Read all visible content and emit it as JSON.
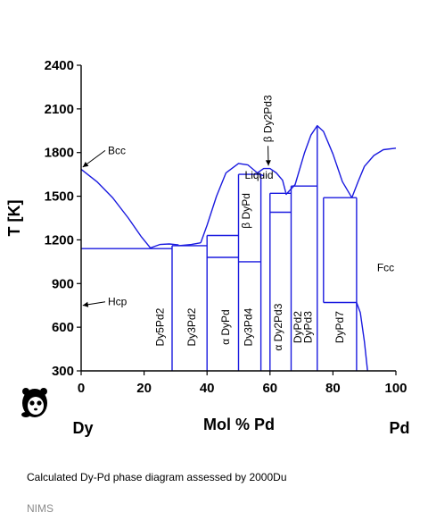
{
  "chart_data": {
    "type": "line",
    "title": "",
    "xlabel": "Mol % Pd",
    "ylabel": "T [K]",
    "xlim": [
      0,
      100
    ],
    "ylim": [
      300,
      2400
    ],
    "x_ticks": [
      "0",
      "20",
      "40",
      "60",
      "80",
      "100"
    ],
    "y_ticks": [
      "300",
      "600",
      "900",
      "1200",
      "1500",
      "1800",
      "2100",
      "2400"
    ],
    "left_element": "Dy",
    "right_element": "Pd",
    "line_color": "#1a1adf",
    "series": [
      {
        "values": [
          [
            0,
            1685
          ],
          [
            5,
            1600
          ],
          [
            10,
            1490
          ],
          [
            15,
            1350
          ],
          [
            19,
            1225
          ],
          [
            22,
            1145
          ]
        ]
      },
      {
        "values": [
          [
            22,
            1145
          ],
          [
            25,
            1168
          ],
          [
            28,
            1172
          ],
          [
            31,
            1165
          ]
        ]
      },
      {
        "values": [
          [
            31,
            1160
          ],
          [
            35,
            1168
          ],
          [
            38,
            1180
          ]
        ]
      },
      {
        "values": [
          [
            38,
            1180
          ],
          [
            40,
            1300
          ],
          [
            43,
            1500
          ],
          [
            46,
            1660
          ],
          [
            50,
            1725
          ],
          [
            53,
            1715
          ],
          [
            56,
            1660
          ],
          [
            58,
            1640
          ]
        ]
      },
      {
        "values": [
          [
            56,
            1660
          ],
          [
            58,
            1690
          ],
          [
            60,
            1690
          ],
          [
            62,
            1660
          ],
          [
            64,
            1610
          ],
          [
            65,
            1525
          ]
        ]
      },
      {
        "values": [
          [
            65,
            1510
          ],
          [
            68,
            1580
          ],
          [
            71,
            1800
          ],
          [
            73,
            1920
          ],
          [
            75,
            1985
          ],
          [
            77,
            1945
          ],
          [
            80,
            1790
          ],
          [
            83,
            1600
          ],
          [
            86,
            1490
          ]
        ]
      },
      {
        "values": [
          [
            86,
            1490
          ],
          [
            88,
            1600
          ],
          [
            90,
            1705
          ],
          [
            93,
            1780
          ],
          [
            96,
            1820
          ],
          [
            100,
            1830
          ]
        ]
      },
      {
        "values": [
          [
            0,
            1140
          ],
          [
            28.9,
            1140
          ]
        ]
      },
      {
        "values": [
          [
            28.9,
            1160
          ],
          [
            40,
            1160
          ]
        ]
      },
      {
        "values": [
          [
            40,
            1230
          ],
          [
            50,
            1230
          ]
        ]
      },
      {
        "values": [
          [
            40,
            1080
          ],
          [
            50,
            1080
          ]
        ]
      },
      {
        "values": [
          [
            50,
            1650
          ],
          [
            57.1,
            1650
          ]
        ]
      },
      {
        "values": [
          [
            50,
            1050
          ],
          [
            57.1,
            1050
          ]
        ]
      },
      {
        "values": [
          [
            60,
            1520
          ],
          [
            66.7,
            1520
          ]
        ]
      },
      {
        "values": [
          [
            60,
            1390
          ],
          [
            66.7,
            1390
          ]
        ]
      },
      {
        "values": [
          [
            66.7,
            1570
          ],
          [
            75,
            1570
          ]
        ]
      },
      {
        "values": [
          [
            77,
            1490
          ],
          [
            87.5,
            1490
          ]
        ]
      },
      {
        "values": [
          [
            77,
            770
          ],
          [
            87.5,
            770
          ]
        ]
      },
      {
        "values": [
          [
            28.9,
            300
          ],
          [
            28.9,
            1160
          ]
        ]
      },
      {
        "values": [
          [
            40,
            300
          ],
          [
            40,
            1230
          ]
        ]
      },
      {
        "values": [
          [
            50,
            300
          ],
          [
            50,
            1650
          ]
        ]
      },
      {
        "values": [
          [
            57.1,
            300
          ],
          [
            57.1,
            1650
          ]
        ]
      },
      {
        "values": [
          [
            60,
            300
          ],
          [
            60,
            1520
          ]
        ]
      },
      {
        "values": [
          [
            66.7,
            300
          ],
          [
            66.7,
            1570
          ]
        ]
      },
      {
        "values": [
          [
            75,
            300
          ],
          [
            75,
            1985
          ]
        ]
      },
      {
        "values": [
          [
            87.5,
            300
          ],
          [
            87.5,
            1490
          ]
        ]
      },
      {
        "values": [
          [
            77,
            770
          ],
          [
            77,
            1490
          ]
        ]
      },
      {
        "values": [
          [
            87.5,
            770
          ],
          [
            88.7,
            700
          ],
          [
            90,
            500
          ],
          [
            91,
            300
          ]
        ]
      }
    ],
    "annotations": [
      {
        "text": "Bcc",
        "x": 8.5,
        "y": 1790,
        "arrow_to": [
          0.5,
          1700
        ]
      },
      {
        "text": "Liquid",
        "x": 52,
        "y": 1620
      },
      {
        "text": "Hcp",
        "x": 8.5,
        "y": 750,
        "arrow_to": [
          0.5,
          750
        ]
      },
      {
        "text": "Fcc",
        "x": 94,
        "y": 985
      },
      {
        "text": "β Dy2Pd3",
        "x": 60.5,
        "y": 1870,
        "rotate": true,
        "arrow_to": [
          59.5,
          1710
        ]
      }
    ],
    "phase_labels": [
      {
        "text": "Dy5Pd2",
        "x": 26.2,
        "y": 600
      },
      {
        "text": "Dy3Pd2",
        "x": 36.2,
        "y": 600
      },
      {
        "text": "α DyPd",
        "x": 47,
        "y": 600
      },
      {
        "text": "Dy3Pd4",
        "x": 54.2,
        "y": 600
      },
      {
        "text": "β DyPd",
        "x": 53.6,
        "y": 1400
      },
      {
        "text": "α Dy2Pd3",
        "x": 63.8,
        "y": 600
      },
      {
        "text": "DyPd2",
        "x": 70,
        "y": 600
      },
      {
        "text": "DyPd3",
        "x": 73.3,
        "y": 600
      },
      {
        "text": "DyPd7",
        "x": 83.3,
        "y": 600
      }
    ]
  },
  "caption": "Calculated Dy-Pd phase diagram assessed by 2000Du",
  "source": "NIMS",
  "logo": "panda-logo"
}
